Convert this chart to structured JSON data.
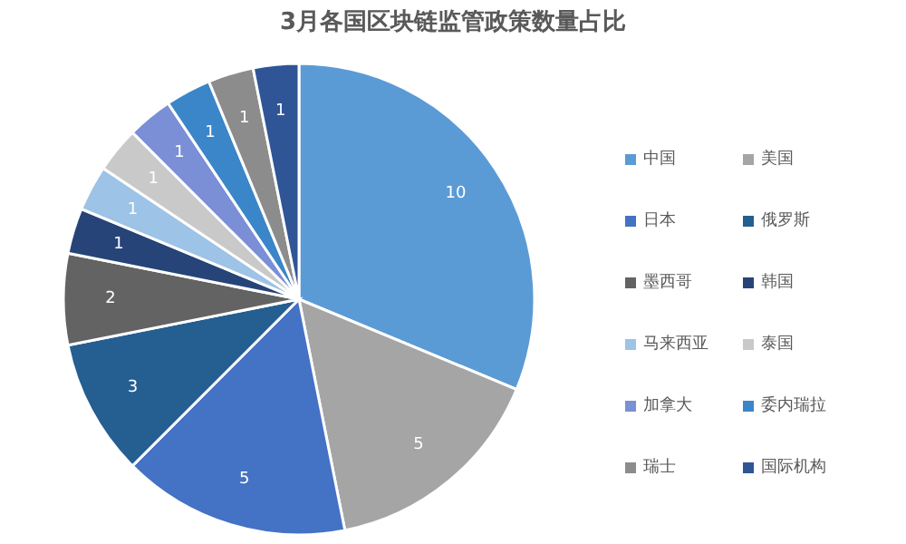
{
  "chart_data": {
    "type": "pie",
    "title": "3月各国区块链监管政策数量占比",
    "categories": [
      "中国",
      "美国",
      "日本",
      "俄罗斯",
      "墨西哥",
      "韩国",
      "马来西亚",
      "泰国",
      "加拿大",
      "委内瑞拉",
      "瑞士",
      "国际机构"
    ],
    "values": [
      10,
      5,
      5,
      3,
      2,
      1,
      1,
      1,
      1,
      1,
      1,
      1
    ],
    "colors": [
      "#5b9bd5",
      "#a5a5a5",
      "#4472c4",
      "#255e91",
      "#636363",
      "#264478",
      "#9dc3e6",
      "#c9c9c9",
      "#7b8fd6",
      "#3a86c8",
      "#8c8c8c",
      "#2f5597"
    ],
    "data_labels": true,
    "legend": "right"
  }
}
